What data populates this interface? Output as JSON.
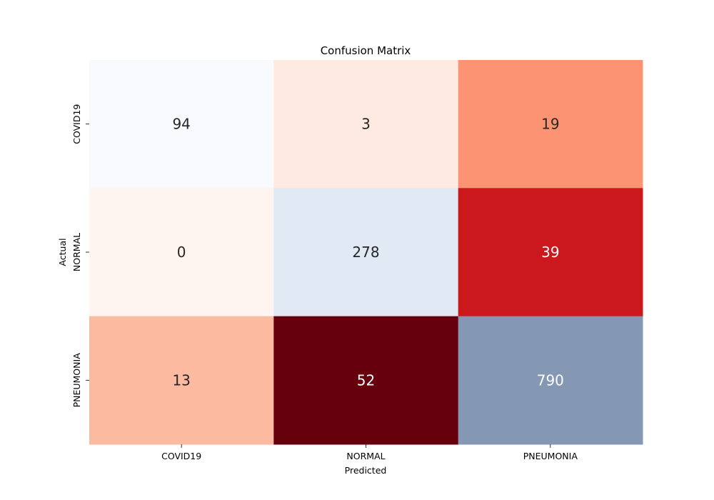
{
  "chart_data": {
    "type": "heatmap",
    "title": "Confusion Matrix",
    "xlabel": "Predicted",
    "ylabel": "Actual",
    "x_categories": [
      "COVID19",
      "NORMAL",
      "PNEUMONIA"
    ],
    "y_categories": [
      "COVID19",
      "NORMAL",
      "PNEUMONIA"
    ],
    "values": [
      [
        94,
        3,
        19
      ],
      [
        0,
        278,
        39
      ],
      [
        13,
        52,
        790
      ]
    ],
    "cell_colors": [
      [
        "#f8fafe",
        "#feeae1",
        "#fc9473"
      ],
      [
        "#fff5f0",
        "#e0e9f4",
        "#ca181d"
      ],
      [
        "#fcbba1",
        "#67000d",
        "#8497b3"
      ]
    ],
    "text_colors": [
      [
        "#262626",
        "#262626",
        "#262626"
      ],
      [
        "#262626",
        "#262626",
        "#ffffff"
      ],
      [
        "#262626",
        "#ffffff",
        "#ffffff"
      ]
    ],
    "colorbar": false
  }
}
